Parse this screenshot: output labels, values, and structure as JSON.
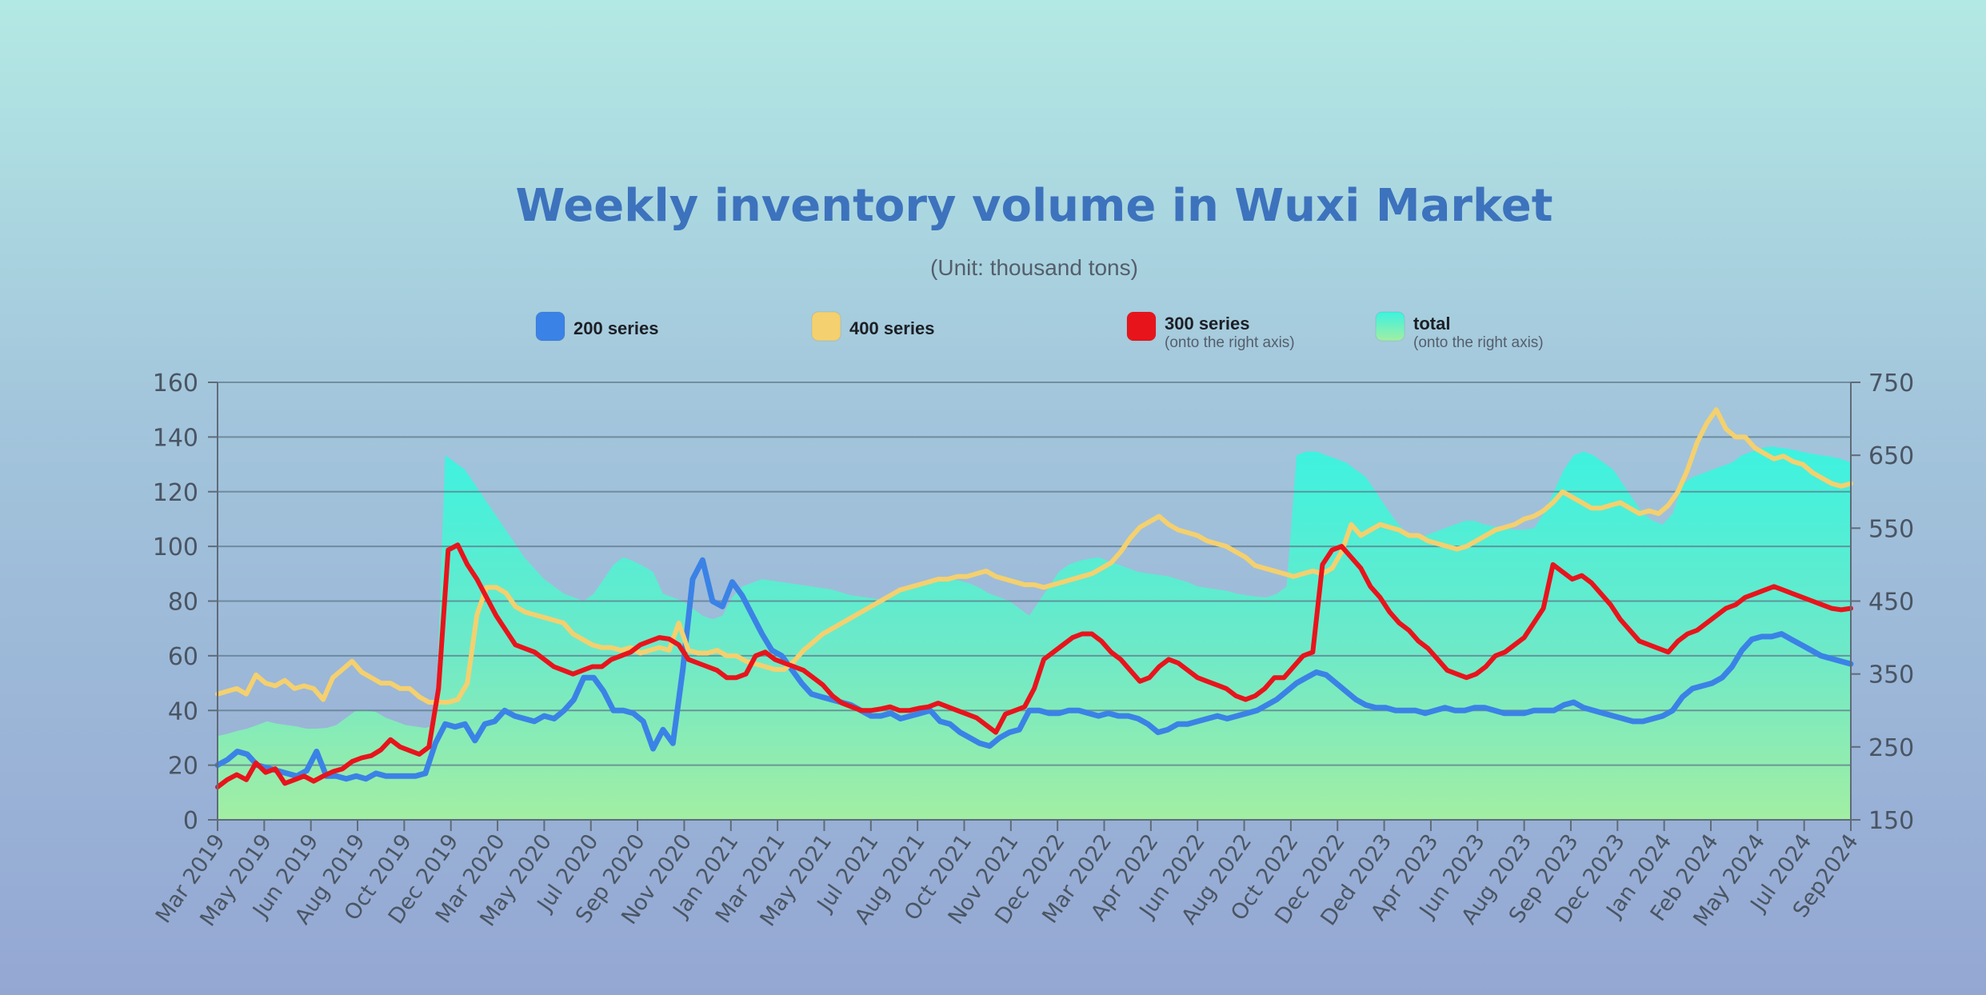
{
  "chart_data": {
    "type": "line",
    "title": "Weekly inventory volume in Wuxi Market",
    "subtitle": "(Unit: thousand tons)",
    "left_axis": {
      "range": [
        0,
        160
      ],
      "ticks": [
        "0",
        "20",
        "40",
        "60",
        "80",
        "100",
        "120",
        "140",
        "160"
      ]
    },
    "right_axis": {
      "range": [
        150,
        750
      ],
      "ticks": [
        "150",
        "250",
        "350",
        "450",
        "550",
        "650",
        "750"
      ]
    },
    "grid": true,
    "legend_position": "top",
    "x_tick_labels": [
      "Mar 2019",
      "May 2019",
      "Jun 2019",
      "Aug 2019",
      "Oct 2019",
      "Dec 2019",
      "Mar 2020",
      "May 2020",
      "Jul 2020",
      "Sep 2020",
      "Nov 2020",
      "Jan 2021",
      "Mar 2021",
      "May 2021",
      "Jul 2021",
      "Aug 2021",
      "Oct 2021",
      "Nov 2021",
      "Dec 2022",
      "Mar 2022",
      "Apr 2022",
      "Jun 2022",
      "Aug 2022",
      "Oct 2022",
      "Dec 2022",
      "Ded 2023",
      "Apr 2023",
      "Jun 2023",
      "Aug 2023",
      "Sep 2023",
      "Dec 2023",
      "Jan 2024",
      "Feb 2024",
      "May 2024",
      "Jul 2024",
      "Sep2024"
    ],
    "series": [
      {
        "name": "200 series",
        "axis": "left",
        "color": "#3b82e6",
        "values": [
          20,
          22,
          25,
          24,
          20,
          19,
          18,
          17,
          16,
          18,
          25,
          16,
          16,
          15,
          16,
          15,
          17,
          16,
          16,
          16,
          16,
          17,
          28,
          35,
          34,
          35,
          29,
          35,
          36,
          40,
          38,
          37,
          36,
          38,
          37,
          40,
          44,
          52,
          52,
          47,
          40,
          40,
          39,
          36,
          26,
          33,
          28,
          55,
          88,
          95,
          80,
          78,
          87,
          82,
          75,
          68,
          62,
          60,
          55,
          50,
          46,
          45,
          44,
          43,
          42,
          40,
          38,
          38,
          39,
          37,
          38,
          39,
          40,
          36,
          35,
          32,
          30,
          28,
          27,
          30,
          32,
          33,
          40,
          40,
          39,
          39,
          40,
          40,
          39,
          38,
          39,
          38,
          38,
          37,
          35,
          32,
          33,
          35,
          35,
          36,
          37,
          38,
          37,
          38,
          39,
          40,
          42,
          44,
          47,
          50,
          52,
          54,
          53,
          50,
          47,
          44,
          42,
          41,
          41,
          40,
          40,
          40,
          39,
          40,
          41,
          40,
          40,
          41,
          41,
          40,
          39,
          39,
          39,
          40,
          40,
          40,
          42,
          43,
          41,
          40,
          39,
          38,
          37,
          36,
          36,
          37,
          38,
          40,
          45,
          48,
          49,
          50,
          52,
          56,
          62,
          66,
          67,
          67,
          68,
          66,
          64,
          62,
          60,
          59,
          58,
          57
        ]
      },
      {
        "name": "400 series",
        "axis": "left",
        "color": "#f4d06f",
        "values": [
          46,
          47,
          48,
          46,
          53,
          50,
          49,
          51,
          48,
          49,
          48,
          44,
          52,
          55,
          58,
          54,
          52,
          50,
          50,
          48,
          48,
          45,
          43,
          43,
          43,
          44,
          50,
          75,
          85,
          85,
          83,
          78,
          76,
          75,
          74,
          73,
          72,
          68,
          66,
          64,
          63,
          63,
          62,
          63,
          61,
          62,
          63,
          62,
          72,
          62,
          61,
          61,
          62,
          60,
          60,
          58,
          57,
          56,
          55,
          55,
          58,
          62,
          65,
          68,
          70,
          72,
          74,
          76,
          78,
          80,
          82,
          84,
          85,
          86,
          87,
          88,
          88,
          89,
          89,
          90,
          91,
          89,
          88,
          87,
          86,
          86,
          85,
          86,
          87,
          88,
          89,
          90,
          92,
          94,
          98,
          103,
          107,
          109,
          111,
          108,
          106,
          105,
          104,
          102,
          101,
          100,
          98,
          96,
          93,
          92,
          91,
          90,
          89,
          90,
          91,
          90,
          92,
          98,
          108,
          104,
          106,
          108,
          107,
          106,
          104,
          104,
          102,
          101,
          100,
          99,
          100,
          102,
          104,
          106,
          107,
          108,
          110,
          111,
          113,
          116,
          120,
          118,
          116,
          114,
          114,
          115,
          116,
          114,
          112,
          113,
          112,
          115,
          120,
          128,
          138,
          145,
          150,
          143,
          140,
          140,
          136,
          134,
          132,
          133,
          131,
          130,
          127,
          125,
          123,
          122,
          123
        ]
      },
      {
        "name": "300 series",
        "axis": "right",
        "sub": "(onto the right axis)",
        "color": "#e8141c",
        "values": [
          195,
          205,
          212,
          205,
          228,
          215,
          220,
          200,
          205,
          210,
          203,
          210,
          216,
          220,
          230,
          235,
          238,
          246,
          260,
          250,
          245,
          240,
          250,
          330,
          520,
          527,
          500,
          480,
          455,
          430,
          410,
          390,
          385,
          380,
          370,
          360,
          355,
          350,
          355,
          360,
          360,
          370,
          375,
          380,
          390,
          395,
          400,
          398,
          390,
          370,
          365,
          360,
          355,
          345,
          345,
          350,
          375,
          380,
          370,
          365,
          360,
          355,
          345,
          335,
          320,
          310,
          305,
          300,
          300,
          302,
          305,
          300,
          300,
          303,
          305,
          310,
          305,
          300,
          295,
          290,
          280,
          270,
          295,
          300,
          305,
          330,
          370,
          380,
          390,
          400,
          405,
          405,
          395,
          380,
          370,
          355,
          340,
          345,
          360,
          370,
          365,
          355,
          345,
          340,
          335,
          330,
          320,
          315,
          320,
          330,
          345,
          345,
          360,
          375,
          380,
          500,
          520,
          525,
          510,
          495,
          470,
          455,
          435,
          420,
          410,
          395,
          385,
          370,
          355,
          350,
          345,
          350,
          360,
          375,
          380,
          390,
          400,
          420,
          440,
          500,
          490,
          480,
          485,
          475,
          460,
          445,
          425,
          410,
          395,
          390,
          385,
          380,
          395,
          405,
          410,
          420,
          430,
          440,
          445,
          455,
          460,
          465,
          470,
          465,
          460,
          455,
          450,
          445,
          440,
          438,
          440
        ]
      },
      {
        "name": "total",
        "axis": "right",
        "sub": "(onto the right axis)",
        "color": "#39f5e0",
        "values": [
          265,
          268,
          272,
          275,
          280,
          285,
          282,
          280,
          278,
          275,
          275,
          276,
          280,
          290,
          300,
          300,
          298,
          290,
          285,
          280,
          278,
          276,
          280,
          650,
          640,
          630,
          610,
          590,
          570,
          550,
          530,
          510,
          495,
          480,
          470,
          460,
          455,
          450,
          460,
          480,
          500,
          510,
          505,
          498,
          490,
          460,
          455,
          450,
          440,
          430,
          425,
          430,
          455,
          470,
          475,
          480,
          478,
          476,
          474,
          472,
          470,
          468,
          466,
          462,
          458,
          456,
          454,
          452,
          455,
          462,
          468,
          472,
          476,
          478,
          480,
          478,
          474,
          468,
          460,
          455,
          450,
          440,
          430,
          450,
          470,
          490,
          500,
          505,
          508,
          510,
          505,
          500,
          495,
          490,
          488,
          486,
          484,
          480,
          476,
          470,
          468,
          466,
          464,
          460,
          458,
          456,
          455,
          460,
          470,
          650,
          655,
          655,
          650,
          645,
          640,
          630,
          620,
          600,
          580,
          560,
          545,
          540,
          540,
          545,
          550,
          555,
          560,
          560,
          555,
          552,
          550,
          548,
          548,
          550,
          570,
          600,
          630,
          650,
          655,
          650,
          640,
          630,
          610,
          590,
          570,
          560,
          555,
          570,
          610,
          620,
          625,
          630,
          635,
          640,
          650,
          655,
          660,
          662,
          660,
          658,
          655,
          652,
          650,
          648,
          645,
          640
        ]
      }
    ]
  }
}
